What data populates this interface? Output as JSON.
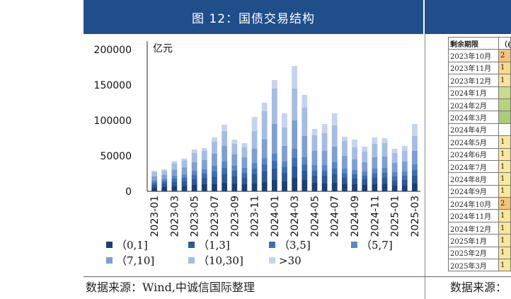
{
  "left_panel": {
    "title": "图 12：国债交易结构",
    "source": "数据来源：Wind,中诚信国际整理"
  },
  "right_panel": {
    "source": "数据来源："
  },
  "table": {
    "header": [
      "剩余期限",
      "（("
    ],
    "rows": [
      {
        "label": "2023年10月",
        "value": "2",
        "color": "#f3c27e"
      },
      {
        "label": "2023年11月",
        "value": "1",
        "color": "#f6d98b"
      },
      {
        "label": "2023年12月",
        "value": "1",
        "color": "#f6e39a"
      },
      {
        "label": "2024年1月",
        "value": "",
        "color": "#c9dc8c"
      },
      {
        "label": "2024年2月",
        "value": "",
        "color": "#b7d47c"
      },
      {
        "label": "2024年3月",
        "value": "",
        "color": "#a8cd78"
      },
      {
        "label": "2024年4月",
        "value": "",
        "color": "#ffffff"
      },
      {
        "label": "2024年5月",
        "value": "1",
        "color": "#f8e79c"
      },
      {
        "label": "2024年6月",
        "value": "1",
        "color": "#f8e79c"
      },
      {
        "label": "2024年7月",
        "value": "1",
        "color": "#f8e89e"
      },
      {
        "label": "2024年8月",
        "value": "1",
        "color": "#f8e89e"
      },
      {
        "label": "2024年9月",
        "value": "1",
        "color": "#f8e89e"
      },
      {
        "label": "2024年10月",
        "value": "2",
        "color": "#f3c27e"
      },
      {
        "label": "2024年11月",
        "value": "1",
        "color": "#f8e69a"
      },
      {
        "label": "2024年12月",
        "value": "1",
        "color": "#f8e69a"
      },
      {
        "label": "2025年1月",
        "value": "1",
        "color": "#f8e69a"
      },
      {
        "label": "2025年2月",
        "value": "1",
        "color": "#f8e69a"
      },
      {
        "label": "2025年3月",
        "value": "1",
        "color": "#f8e69a"
      }
    ]
  },
  "chart_data": {
    "type": "bar",
    "stacked": true,
    "ylabel": "亿元",
    "ylim": [
      0,
      200000
    ],
    "yticks": [
      "0",
      "50000",
      "100000",
      "150000",
      "200000"
    ],
    "categories": [
      "2023-01",
      "2023-02",
      "2023-03",
      "2023-04",
      "2023-05",
      "2023-06",
      "2023-07",
      "2023-08",
      "2023-09",
      "2023-10",
      "2023-11",
      "2023-12",
      "2024-01",
      "2024-02",
      "2024-03",
      "2024-04",
      "2024-05",
      "2024-06",
      "2024-07",
      "2024-08",
      "2024-09",
      "2024-10",
      "2024-11",
      "2024-12",
      "2025-01",
      "2025-02",
      "2025-03"
    ],
    "xtick_labels": [
      "2023-01",
      "2023-03",
      "2023-05",
      "2023-07",
      "2023-09",
      "2023-11",
      "2024-01",
      "2024-03",
      "2024-05",
      "2024-07",
      "2024-09",
      "2024-11",
      "2025-01",
      "2025-03"
    ],
    "series": [
      {
        "name": "（0,1]",
        "color": "#1f3f6e",
        "values": [
          5000,
          6000,
          7000,
          7500,
          9000,
          10000,
          10000,
          12000,
          11000,
          10000,
          11000,
          13000,
          16000,
          14000,
          19000,
          16000,
          12000,
          11000,
          12000,
          10000,
          10000,
          9000,
          10000,
          10000,
          8000,
          8000,
          11000
        ]
      },
      {
        "name": "（1,3]",
        "color": "#2e5894",
        "values": [
          4000,
          4500,
          6000,
          6500,
          8000,
          8500,
          10000,
          12000,
          10000,
          9000,
          13000,
          15000,
          16000,
          12000,
          16000,
          13000,
          10000,
          11000,
          12000,
          9000,
          8000,
          8000,
          9000,
          9000,
          7000,
          8000,
          11000
        ]
      },
      {
        "name": "（3,5]",
        "color": "#3f6eae",
        "values": [
          3000,
          3500,
          4500,
          5000,
          6000,
          6500,
          8000,
          9000,
          8000,
          7000,
          8000,
          10000,
          11000,
          8000,
          12000,
          9000,
          7000,
          7000,
          8000,
          6000,
          6000,
          5000,
          6000,
          7000,
          6000,
          6000,
          8000
        ]
      },
      {
        "name": "（5,7]",
        "color": "#5b86c4",
        "values": [
          3000,
          3000,
          4000,
          4500,
          6000,
          6000,
          8000,
          9000,
          7000,
          7000,
          8000,
          9000,
          10000,
          8000,
          13000,
          10000,
          8000,
          8000,
          9000,
          7000,
          6000,
          6000,
          7000,
          7000,
          6000,
          6000,
          8000
        ]
      },
      {
        "name": "（7,10]",
        "color": "#7f9fd1",
        "values": [
          6000,
          6000,
          9000,
          10000,
          12000,
          13000,
          17000,
          22000,
          16000,
          15000,
          20000,
          26000,
          42000,
          22000,
          40000,
          30000,
          20000,
          20000,
          22000,
          18000,
          15000,
          13000,
          16000,
          16000,
          13000,
          14000,
          19000
        ]
      },
      {
        "name": "（10,30]",
        "color": "#a6bde2",
        "values": [
          6000,
          6000,
          9000,
          10000,
          13000,
          13000,
          17000,
          21000,
          15000,
          14000,
          25000,
          40000,
          50000,
          26000,
          45000,
          40000,
          22000,
          25000,
          30000,
          21000,
          17000,
          15000,
          19000,
          19000,
          14000,
          15000,
          21000
        ]
      },
      {
        "name": ">30",
        "color": "#c6d4ec",
        "values": [
          2000,
          2000,
          3000,
          3000,
          5000,
          4000,
          6000,
          9000,
          6000,
          6000,
          20000,
          12000,
          12000,
          20000,
          32000,
          18000,
          9000,
          13000,
          17000,
          6000,
          11000,
          7000,
          9000,
          7000,
          6000,
          7000,
          17000
        ]
      }
    ]
  }
}
